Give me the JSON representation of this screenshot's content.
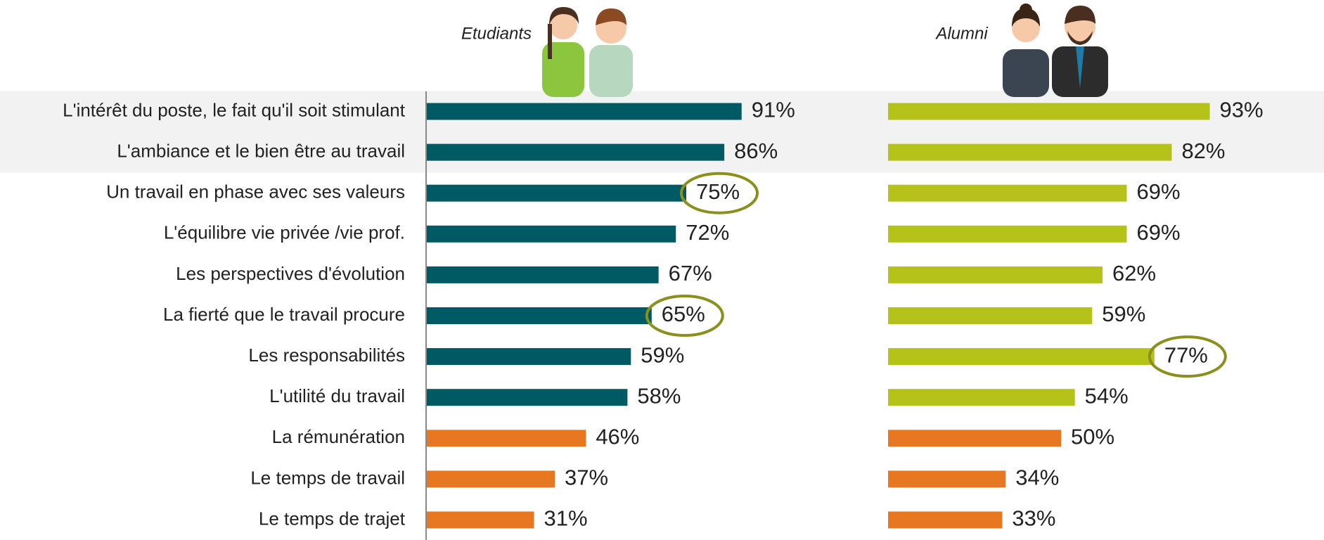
{
  "chart_data": {
    "type": "bar",
    "orientation": "horizontal",
    "categories": [
      "L'intérêt du poste, le fait qu'il soit stimulant",
      "L'ambiance et le bien être au travail",
      "Un travail en phase avec ses valeurs",
      "L'équilibre vie privée /vie prof.",
      "Les perspectives d'évolution",
      "La fierté que le travail procure",
      "Les responsabilités",
      "L'utilité du travail",
      "La rémunération",
      "Le temps de travail",
      "Le temps de trajet"
    ],
    "xlim": [
      0,
      100
    ],
    "shaded_rows": [
      0,
      1
    ],
    "highlight_color": "#8a8f1e",
    "series": [
      {
        "name": "Etudiants",
        "values": [
          91,
          86,
          75,
          72,
          67,
          65,
          59,
          58,
          46,
          37,
          31
        ],
        "value_labels": [
          "91%",
          "86%",
          "75%",
          "72%",
          "67%",
          "65%",
          "59%",
          "58%",
          "46%",
          "37%",
          "31%"
        ],
        "colors": [
          "#005a64",
          "#005a64",
          "#005a64",
          "#005a64",
          "#005a64",
          "#005a64",
          "#005a64",
          "#005a64",
          "#e87722",
          "#e87722",
          "#e87722"
        ],
        "highlighted": [
          2,
          5
        ]
      },
      {
        "name": "Alumni",
        "values": [
          93,
          82,
          69,
          69,
          62,
          59,
          77,
          54,
          50,
          34,
          33
        ],
        "value_labels": [
          "93%",
          "82%",
          "69%",
          "69%",
          "62%",
          "59%",
          "77%",
          "54%",
          "50%",
          "34%",
          "33%"
        ],
        "colors": [
          "#b5c21a",
          "#b5c21a",
          "#b5c21a",
          "#b5c21a",
          "#b5c21a",
          "#b5c21a",
          "#b5c21a",
          "#b5c21a",
          "#e87722",
          "#e87722",
          "#e87722"
        ],
        "highlighted": [
          6
        ]
      }
    ]
  }
}
